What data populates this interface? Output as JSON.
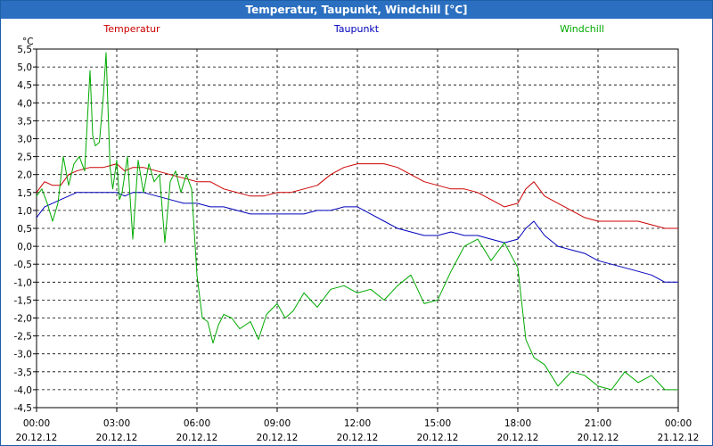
{
  "window": {
    "title": "Temperatur, Taupunkt, Windchill [°C]"
  },
  "chart_data": {
    "type": "line",
    "title": "Temperatur, Taupunkt, Windchill [°C]",
    "ylabel": "°C",
    "ylim": [
      -4.5,
      5.5
    ],
    "yticks": [
      "5,5",
      "5,0",
      "4,5",
      "4,0",
      "3,5",
      "3,0",
      "2,5",
      "2,0",
      "1,5",
      "1,0",
      "0,5",
      "0,0",
      "-0,5",
      "-1,0",
      "-1,5",
      "-2,0",
      "-2,5",
      "-3,0",
      "-3,5",
      "-4,0",
      "-4,5"
    ],
    "xlim": [
      0,
      24
    ],
    "xticks": [
      {
        "time": "00:00",
        "date": "20.12.12"
      },
      {
        "time": "03:00",
        "date": "20.12.12"
      },
      {
        "time": "06:00",
        "date": "20.12.12"
      },
      {
        "time": "09:00",
        "date": "20.12.12"
      },
      {
        "time": "12:00",
        "date": "20.12.12"
      },
      {
        "time": "15:00",
        "date": "20.12.12"
      },
      {
        "time": "18:00",
        "date": "20.12.12"
      },
      {
        "time": "21:00",
        "date": "20.12.12"
      },
      {
        "time": "00:00",
        "date": "21.12.12"
      }
    ],
    "grid": true,
    "series": [
      {
        "name": "Temperatur",
        "color": "#cc0000",
        "x": [
          0,
          0.3,
          0.6,
          0.9,
          1.2,
          1.5,
          2,
          2.5,
          3,
          3.3,
          3.6,
          4,
          4.5,
          5,
          5.5,
          6,
          6.5,
          7,
          7.5,
          8,
          8.5,
          9,
          9.5,
          10,
          10.5,
          11,
          11.5,
          12,
          12.5,
          13,
          13.5,
          14,
          14.5,
          15,
          15.5,
          16,
          16.5,
          17,
          17.5,
          18,
          18.3,
          18.6,
          19,
          19.5,
          20,
          20.5,
          21,
          21.5,
          22,
          22.5,
          23,
          23.5,
          24
        ],
        "values": [
          1.5,
          1.8,
          1.7,
          1.7,
          2.0,
          2.1,
          2.2,
          2.2,
          2.3,
          2.1,
          2.2,
          2.2,
          2.1,
          2.0,
          1.9,
          1.8,
          1.8,
          1.6,
          1.5,
          1.4,
          1.4,
          1.5,
          1.5,
          1.6,
          1.7,
          2.0,
          2.2,
          2.3,
          2.3,
          2.3,
          2.2,
          2.0,
          1.8,
          1.7,
          1.6,
          1.6,
          1.5,
          1.3,
          1.1,
          1.2,
          1.6,
          1.8,
          1.4,
          1.2,
          1.0,
          0.8,
          0.7,
          0.7,
          0.7,
          0.7,
          0.6,
          0.5,
          0.5
        ]
      },
      {
        "name": "Taupunkt",
        "color": "#0000bb",
        "x": [
          0,
          0.3,
          0.6,
          0.9,
          1.2,
          1.5,
          2,
          2.5,
          3,
          3.3,
          3.6,
          4,
          4.5,
          5,
          5.5,
          6,
          6.5,
          7,
          7.5,
          8,
          8.5,
          9,
          9.5,
          10,
          10.5,
          11,
          11.5,
          12,
          12.5,
          13,
          13.5,
          14,
          14.5,
          15,
          15.5,
          16,
          16.5,
          17,
          17.5,
          18,
          18.3,
          18.6,
          19,
          19.5,
          20,
          20.5,
          21,
          21.5,
          22,
          22.5,
          23,
          23.5,
          24
        ],
        "values": [
          0.8,
          1.1,
          1.2,
          1.3,
          1.4,
          1.5,
          1.5,
          1.5,
          1.5,
          1.4,
          1.5,
          1.5,
          1.4,
          1.3,
          1.2,
          1.2,
          1.1,
          1.1,
          1.0,
          0.9,
          0.9,
          0.9,
          0.9,
          0.9,
          1.0,
          1.0,
          1.1,
          1.1,
          0.9,
          0.7,
          0.5,
          0.4,
          0.3,
          0.3,
          0.4,
          0.3,
          0.3,
          0.2,
          0.1,
          0.2,
          0.5,
          0.7,
          0.3,
          0.0,
          -0.1,
          -0.2,
          -0.4,
          -0.5,
          -0.6,
          -0.7,
          -0.8,
          -1.0,
          -1.0
        ]
      },
      {
        "name": "Windchill",
        "color": "#00aa00",
        "x": [
          0,
          0.2,
          0.4,
          0.6,
          0.8,
          1.0,
          1.2,
          1.4,
          1.6,
          1.8,
          2.0,
          2.1,
          2.2,
          2.35,
          2.5,
          2.6,
          2.75,
          2.85,
          3.0,
          3.1,
          3.2,
          3.4,
          3.6,
          3.8,
          4.0,
          4.2,
          4.4,
          4.6,
          4.8,
          5.0,
          5.2,
          5.4,
          5.6,
          5.8,
          6.0,
          6.2,
          6.4,
          6.6,
          6.8,
          7.0,
          7.3,
          7.6,
          8.0,
          8.3,
          8.6,
          9.0,
          9.3,
          9.6,
          10,
          10.5,
          11,
          11.5,
          12,
          12.5,
          13,
          13.5,
          14,
          14.5,
          15,
          15.5,
          16,
          16.5,
          17,
          17.5,
          18,
          18.3,
          18.6,
          19,
          19.5,
          20,
          20.5,
          21,
          21.5,
          22,
          22.5,
          23,
          23.5,
          24
        ],
        "values": [
          1.4,
          1.6,
          1.2,
          0.7,
          1.2,
          2.5,
          1.7,
          2.3,
          2.5,
          2.1,
          4.9,
          3.1,
          2.8,
          2.9,
          4.2,
          5.4,
          2.2,
          1.6,
          2.4,
          1.3,
          1.5,
          2.5,
          0.2,
          2.4,
          1.5,
          2.3,
          1.8,
          2.0,
          0.1,
          1.8,
          2.1,
          1.5,
          2.0,
          1.6,
          -0.8,
          -2.0,
          -2.1,
          -2.7,
          -2.2,
          -1.9,
          -2.0,
          -2.3,
          -2.1,
          -2.6,
          -1.9,
          -1.6,
          -2.0,
          -1.8,
          -1.3,
          -1.7,
          -1.2,
          -1.1,
          -1.3,
          -1.2,
          -1.5,
          -1.1,
          -0.8,
          -1.6,
          -1.5,
          -0.7,
          0.0,
          0.2,
          -0.4,
          0.1,
          -0.6,
          -2.6,
          -3.1,
          -3.3,
          -3.9,
          -3.5,
          -3.6,
          -3.9,
          -4.0,
          -3.5,
          -3.8,
          -3.6,
          -4.0,
          -4.0
        ]
      }
    ]
  }
}
